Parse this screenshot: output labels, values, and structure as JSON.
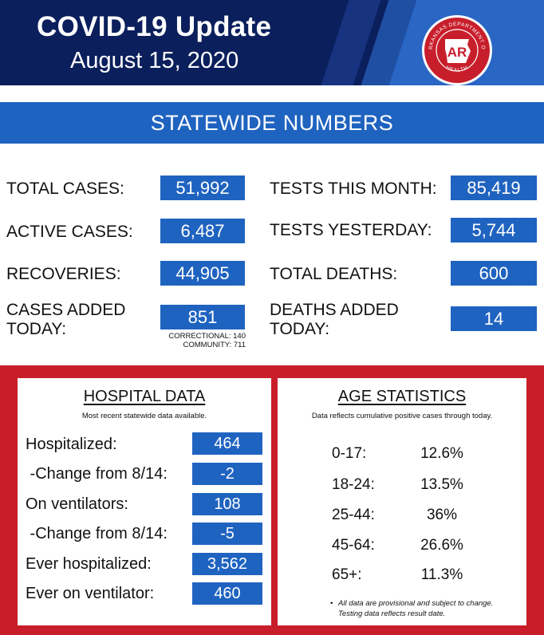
{
  "header": {
    "title": "COVID-19 Update",
    "date": "August 15, 2020",
    "seal": {
      "top_text": "ARKANSAS DEPARTMENT OF",
      "bottom_text": "HEALTH",
      "monogram": "AR",
      "color": "#c81e2b"
    }
  },
  "statewide": {
    "banner": "STATEWIDE NUMBERS",
    "total_cases": {
      "label": "TOTAL CASES:",
      "value": "51,992"
    },
    "active_cases": {
      "label": "ACTIVE CASES:",
      "value": "6,487"
    },
    "recoveries": {
      "label": "RECOVERIES:",
      "value": "44,905"
    },
    "cases_added": {
      "label_line1": "CASES ADDED",
      "label_line2": "TODAY:",
      "value": "851",
      "note1": "CORRECTIONAL: 140",
      "note2": "COMMUNITY: 711"
    },
    "tests_month": {
      "label": "TESTS THIS MONTH:",
      "value": "85,419"
    },
    "tests_yesterday": {
      "label": "TESTS YESTERDAY:",
      "value": "5,744"
    },
    "total_deaths": {
      "label": "TOTAL DEATHS:",
      "value": "600"
    },
    "deaths_added": {
      "label_line1": "DEATHS ADDED",
      "label_line2": "TODAY:",
      "value": "14"
    }
  },
  "hospital": {
    "title": "HOSPITAL DATA",
    "subtitle": "Most recent statewide data available.",
    "rows": [
      {
        "label": "Hospitalized:",
        "value": "464"
      },
      {
        "label": " -Change from 8/14:",
        "value": "-2"
      },
      {
        "label": "On ventilators:",
        "value": "108"
      },
      {
        "label": " -Change from 8/14:",
        "value": "-5"
      },
      {
        "label": "Ever hospitalized:",
        "value": "3,562"
      },
      {
        "label": "Ever on ventilator:",
        "value": "460"
      }
    ]
  },
  "age": {
    "title": "AGE STATISTICS",
    "subtitle": "Data reflects cumulative positive cases through today.",
    "rows": [
      {
        "label": "0-17:",
        "value": "12.6%"
      },
      {
        "label": "18-24:",
        "value": "13.5%"
      },
      {
        "label": "25-44:",
        "value": "36%"
      },
      {
        "label": "45-64:",
        "value": "26.6%"
      },
      {
        "label": "65+:",
        "value": "11.3%"
      }
    ],
    "footnote_line1": "All data are provisional and subject to change.",
    "footnote_line2": "Testing data reflects result date."
  },
  "colors": {
    "navy": "#0b1f5c",
    "blue": "#1f63c0",
    "red": "#c81e2b"
  }
}
